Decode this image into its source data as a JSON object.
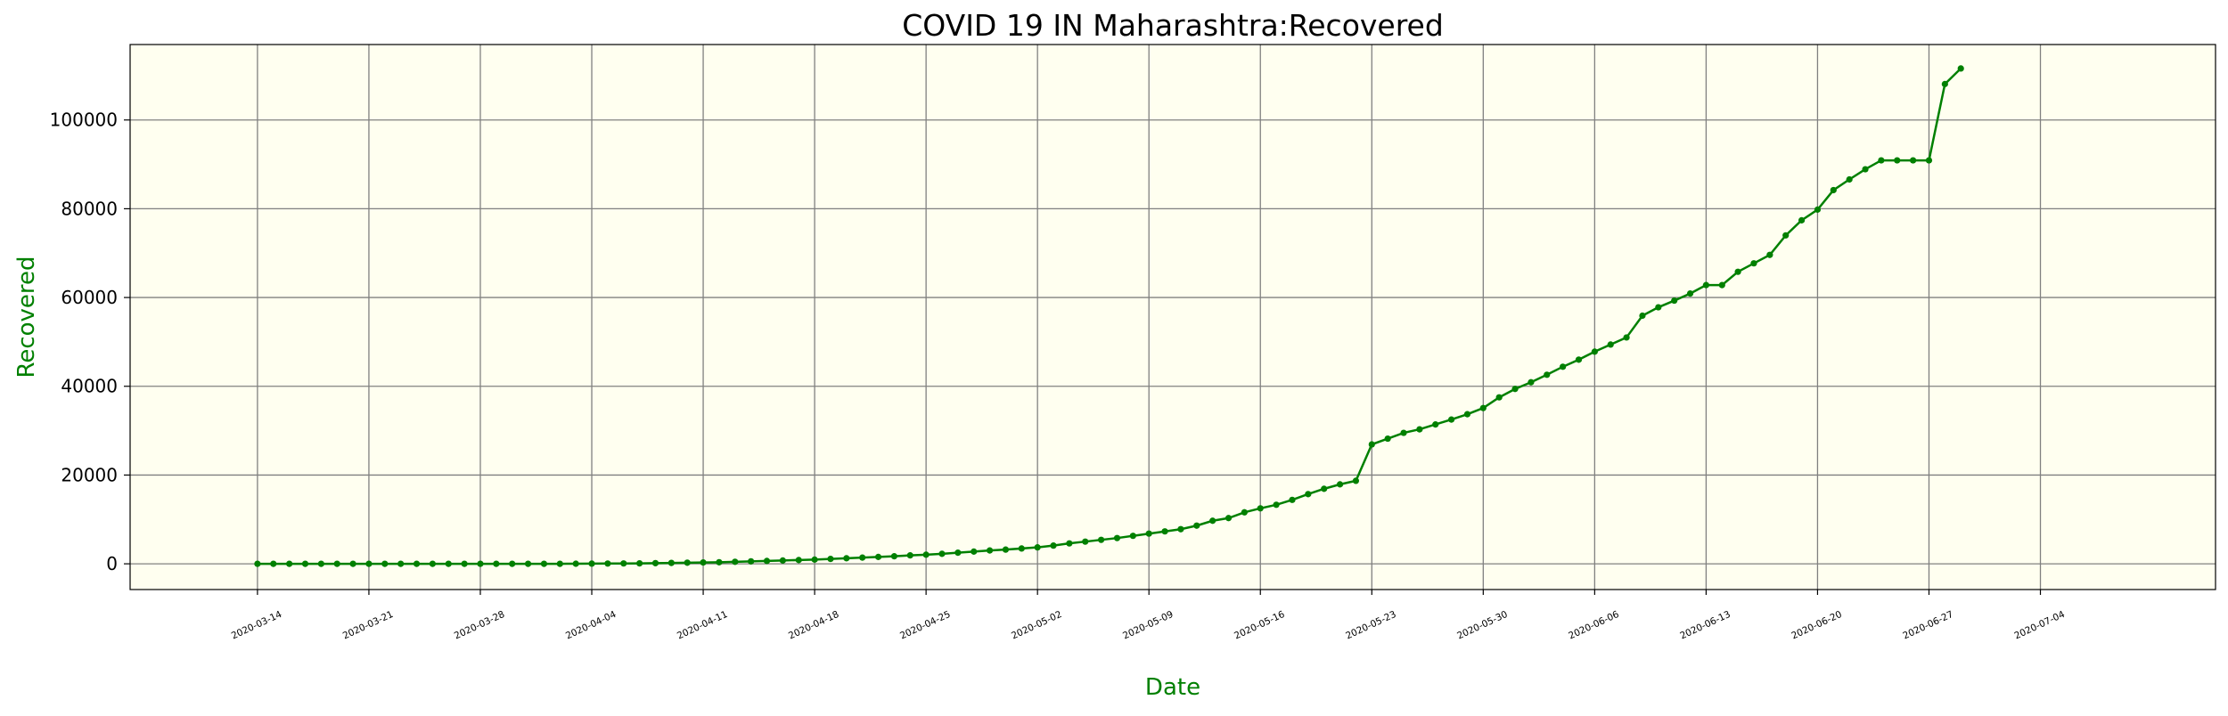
{
  "chart_data": {
    "type": "line",
    "title": "COVID 19 IN Maharashtra:Recovered",
    "xlabel": "Date",
    "ylabel": "Recovered",
    "ylim": [
      -5800,
      117000
    ],
    "xlim": [
      "2020-03-06",
      "2020-07-15"
    ],
    "grid": true,
    "colors": {
      "line": "#008000",
      "plot_background": "#fffff0",
      "grid": "#808080",
      "label": "#008000"
    },
    "x_ticks": [
      "2020-03-14",
      "2020-03-21",
      "2020-03-28",
      "2020-04-04",
      "2020-04-11",
      "2020-04-18",
      "2020-04-25",
      "2020-05-02",
      "2020-05-09",
      "2020-05-16",
      "2020-05-23",
      "2020-05-30",
      "2020-06-06",
      "2020-06-13",
      "2020-06-20",
      "2020-06-27",
      "2020-07-04"
    ],
    "y_ticks": [
      0,
      20000,
      40000,
      60000,
      80000,
      100000
    ],
    "series": [
      {
        "x_start": "2020-03-14",
        "values": [
          0,
          0,
          0,
          0,
          0,
          0,
          0,
          0,
          0,
          0,
          0,
          0,
          0,
          0,
          0,
          0,
          0,
          0,
          0,
          0,
          20,
          40,
          60,
          80,
          100,
          150,
          200,
          250,
          300,
          350,
          450,
          550,
          650,
          750,
          850,
          950,
          1100,
          1250,
          1400,
          1550,
          1700,
          1900,
          2050,
          2250,
          2500,
          2750,
          3000,
          3200,
          3450,
          3700,
          4100,
          4600,
          5000,
          5400,
          5800,
          6300,
          6800,
          7300,
          7800,
          8600,
          9700,
          10300,
          11600,
          12500,
          13300,
          14400,
          15700,
          16900,
          17900,
          18700,
          26900,
          28200,
          29500,
          30300,
          31400,
          32500,
          33700,
          35100,
          37500,
          39400,
          40900,
          42600,
          44400,
          46000,
          47800,
          49400,
          51000,
          55900,
          57800,
          59300,
          60900,
          62800,
          62800,
          65800,
          67700,
          69600,
          74000,
          77400,
          79800,
          84200,
          86600,
          88900,
          90900,
          90900,
          90900,
          90900,
          108100,
          111600
        ]
      }
    ]
  }
}
